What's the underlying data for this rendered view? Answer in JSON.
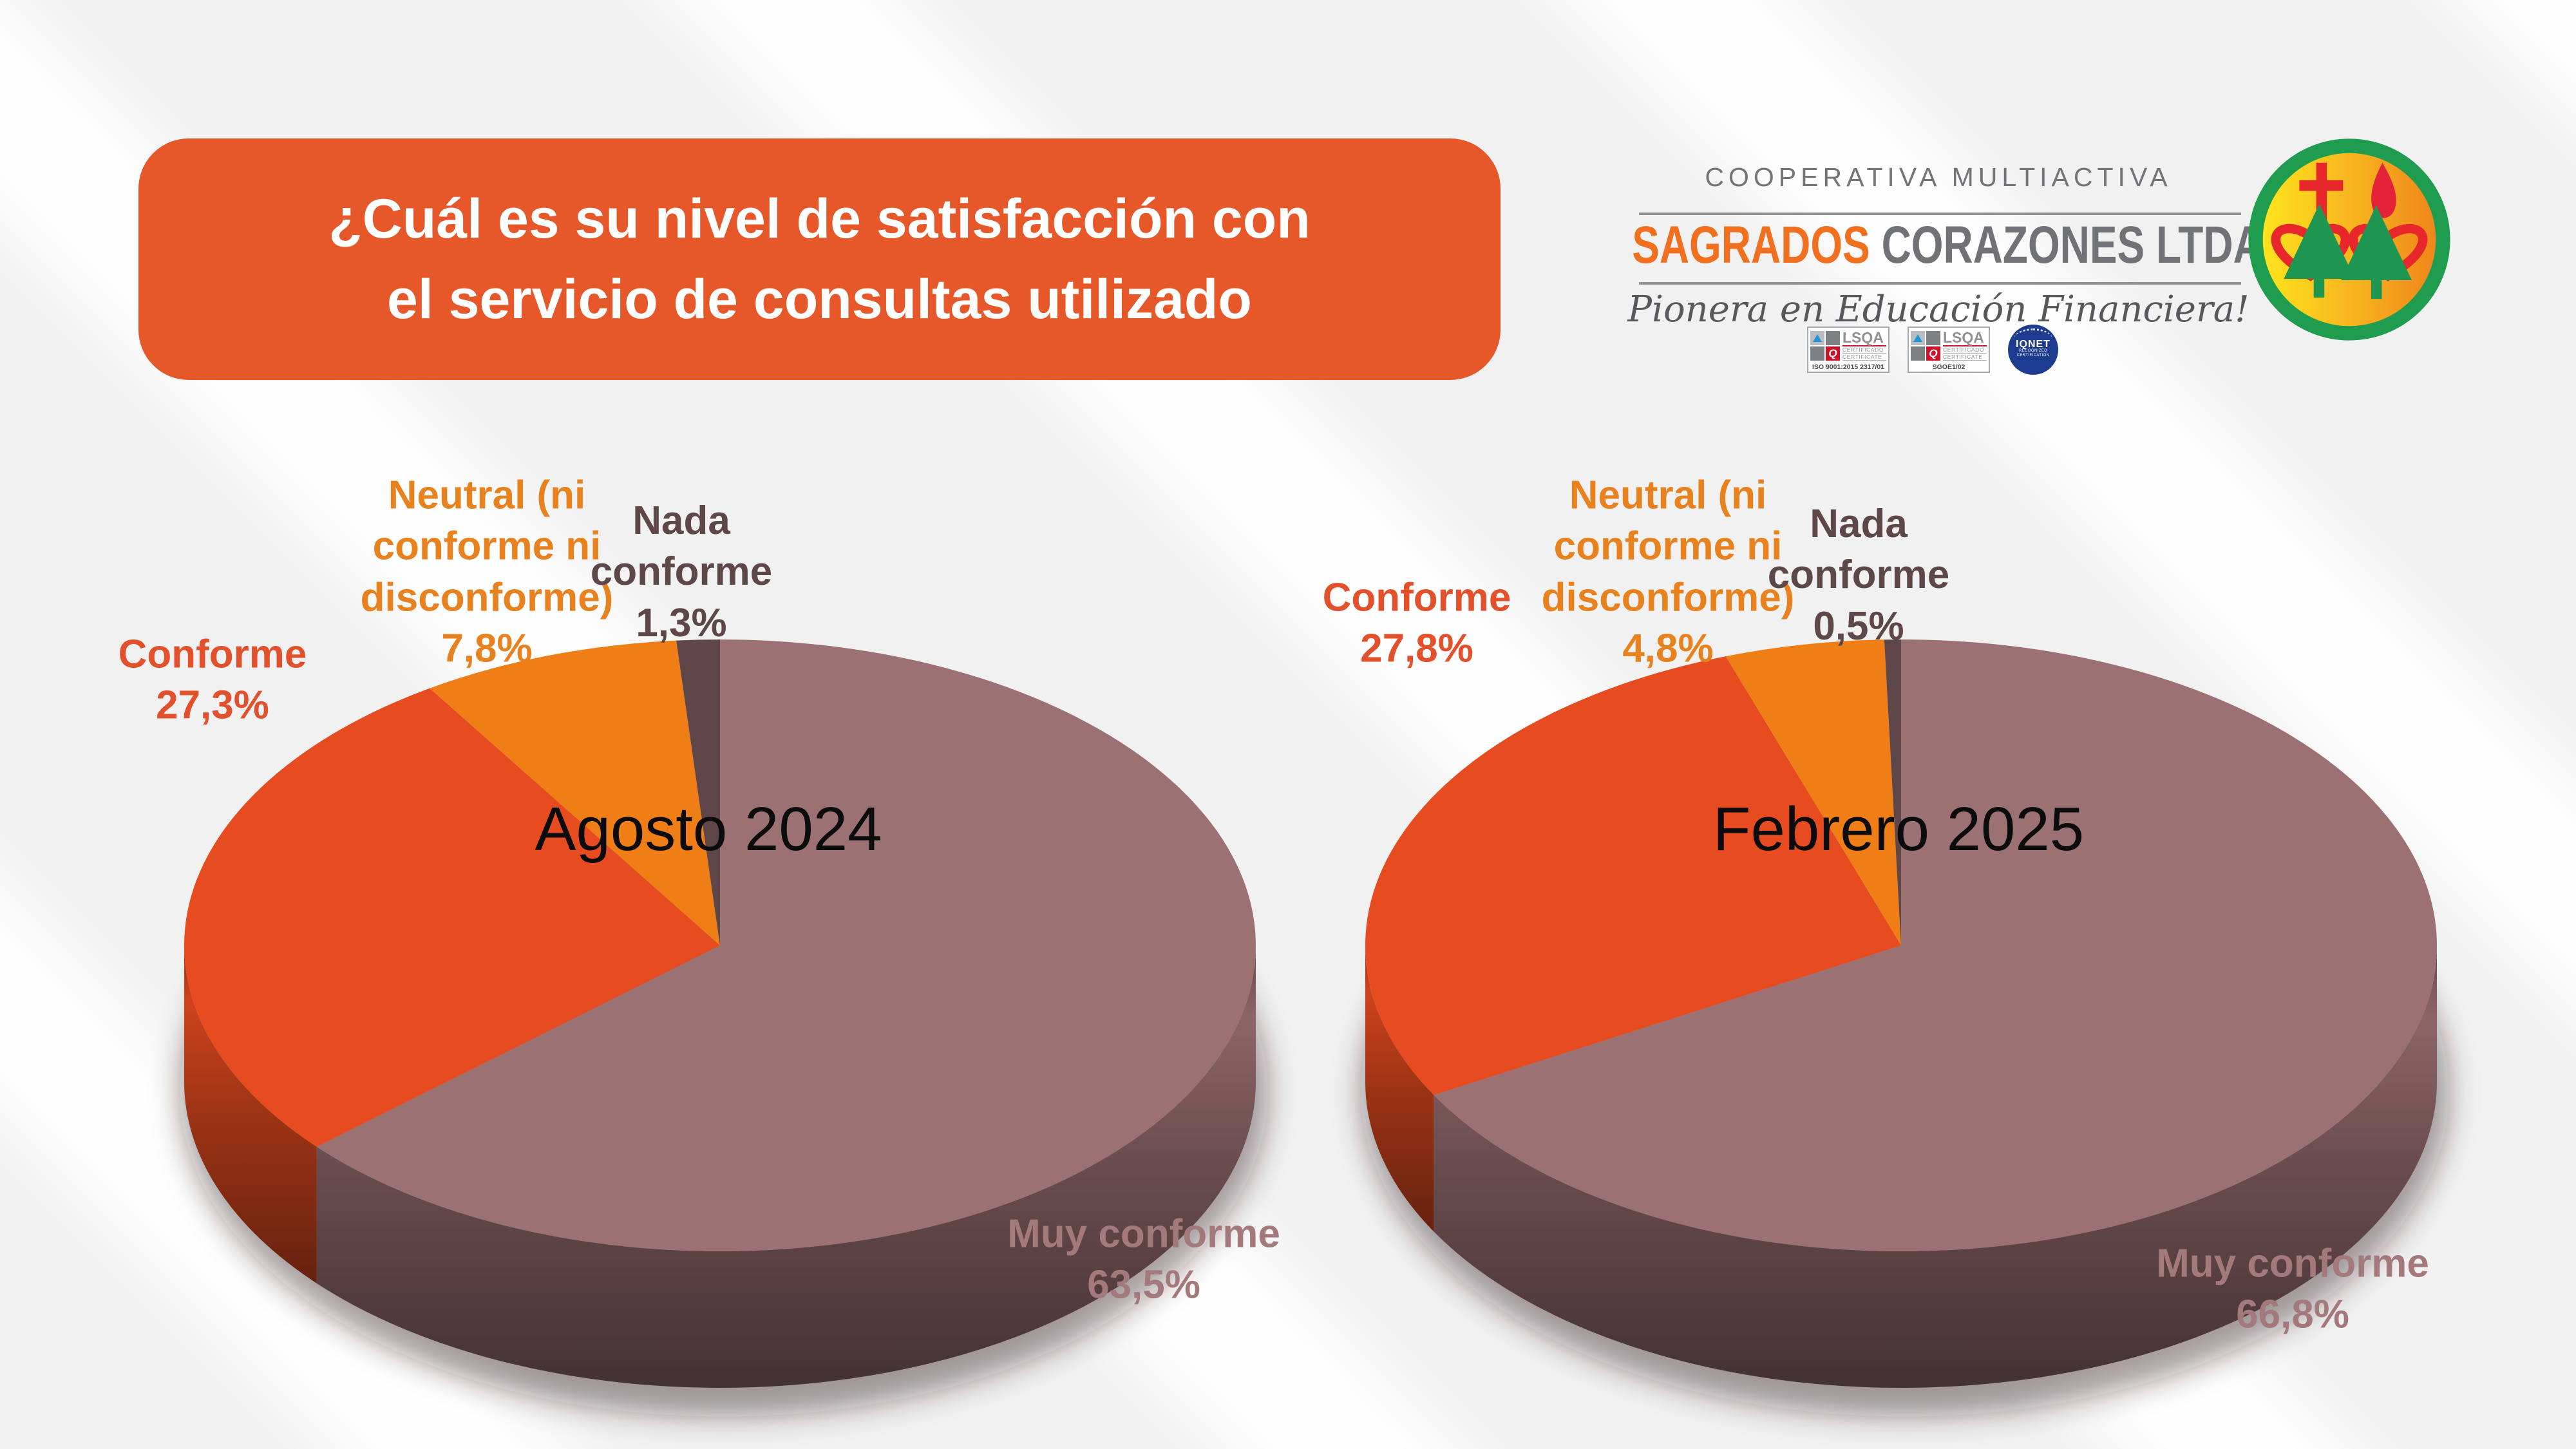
{
  "header": {
    "title_lines": [
      "¿Cuál es su nivel de satisfacción con",
      "el servicio de consultas utilizado"
    ]
  },
  "brand": {
    "cooperative": "COOPERATIVA MULTIACTIVA",
    "name_primary": "SAGRADOS",
    "name_secondary": "CORAZONES LTDA.",
    "slogan": "Pionera en Educación Financiera!",
    "badges": [
      {
        "name": "LSQA",
        "q_letter": "Q",
        "cert_line1": "CERTIFICADO",
        "cert_line2": "CERTIFICATE",
        "footer": "ISO 9001:2015  2317/01"
      },
      {
        "name": "LSQA",
        "q_letter": "Q",
        "cert_line1": "CERTIFICADO",
        "cert_line2": "CERTIFICATE",
        "footer": "SGOE1/02"
      }
    ],
    "iqnet": {
      "name": "IQNET",
      "sub_line1": "RECOGNIZED",
      "sub_line2": "CERTIFICATION"
    },
    "emblem_icon": "sacred-hearts-cooperative-emblem",
    "accent_color": "#e6582a"
  },
  "chart_data": [
    {
      "type": "pie",
      "style": "3d",
      "title": "Agosto 2024",
      "start_angle_deg": 0,
      "direction": "clockwise",
      "categories": [
        "Muy conforme",
        "Conforme",
        "Neutral (ni conforme ni disconforme)",
        "Nada conforme"
      ],
      "values": [
        63.5,
        27.3,
        7.8,
        1.3
      ],
      "value_labels": [
        "63,5%",
        "27,3%",
        "7,8%",
        "1,3%"
      ],
      "colors": [
        "#9c7173",
        "#e74b20",
        "#ef7e17",
        "#5f4648"
      ],
      "legend_position": "around",
      "grid": false
    },
    {
      "type": "pie",
      "style": "3d",
      "title": "Febrero 2025",
      "start_angle_deg": 0,
      "direction": "clockwise",
      "categories": [
        "Muy conforme",
        "Conforme",
        "Neutral (ni conforme ni disconforme)",
        "Nada conforme"
      ],
      "values": [
        66.8,
        27.8,
        4.8,
        0.5
      ],
      "value_labels": [
        "66,8%",
        "27,8%",
        "4,8%",
        "0,5%"
      ],
      "colors": [
        "#9c7173",
        "#e74b20",
        "#ef7e17",
        "#5f4648"
      ],
      "legend_position": "around",
      "grid": false
    }
  ]
}
